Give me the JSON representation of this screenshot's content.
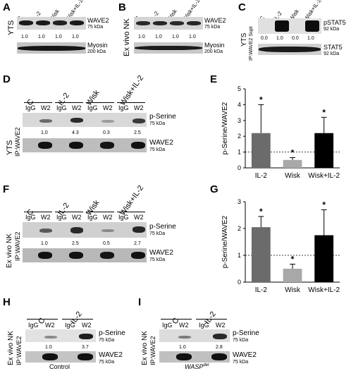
{
  "panels": {
    "A": {
      "letter": "A",
      "cell": "YTS",
      "lanes": [
        "C",
        "IL-2",
        "Wisk",
        "Wisk+IL-2"
      ],
      "top_label": "WAVE2",
      "top_kda": "75 kDa",
      "bottom_label": "Myosin",
      "bottom_kda": "200 kDa",
      "values": [
        "1.0",
        "1.0",
        "1.0",
        "1.0"
      ]
    },
    "B": {
      "letter": "B",
      "cell": "Ex vivo NK",
      "lanes": [
        "C",
        "IL-2",
        "Wisk",
        "Wisk+IL-2"
      ],
      "top_label": "WAVE2",
      "top_kda": "75 kDa",
      "bottom_label": "Myosin",
      "bottom_kda": "200 kDa",
      "values": [
        "1.0",
        "1.0",
        "1.0",
        "1.0"
      ]
    },
    "C": {
      "letter": "C",
      "cell": "YTS",
      "side": "IP:WAVE2 Supt",
      "lanes": [
        "C",
        "IL-2",
        "Wisk",
        "Wisk+IL-2"
      ],
      "top_label": "pSTAT5",
      "top_kda": "92 kDa",
      "bottom_label": "STAT5",
      "bottom_kda": "92 kDa",
      "values": [
        "0.0",
        "1.0",
        "0.0",
        "1.0"
      ]
    },
    "D": {
      "letter": "D",
      "cell": "YTS",
      "side": "IP:WAVE2",
      "groups": [
        "C",
        "IL-2",
        "Wisk",
        "Wisk+IL-2"
      ],
      "sub": [
        "IgG",
        "W2",
        "IgG",
        "W2",
        "IgG",
        "W2",
        "IgG",
        "W2"
      ],
      "top_label": "p-Serine",
      "top_kda": "75 kDa",
      "bottom_label": "WAVE2",
      "bottom_kda": "75 kDa",
      "values": [
        "1.0",
        "4.3",
        "0.3",
        "2.5"
      ]
    },
    "E": {
      "letter": "E"
    },
    "F": {
      "letter": "F",
      "cell": "Ex vivo NK",
      "side": "IP:WAVE2",
      "groups": [
        "C",
        "IL-2",
        "Wisk",
        "Wisk+IL-2"
      ],
      "sub": [
        "IgG",
        "W2",
        "IgG",
        "W2",
        "IgG",
        "W2",
        "IgG",
        "W2"
      ],
      "top_label": "p-Serine",
      "top_kda": "75 kDa",
      "bottom_label": "WAVE2",
      "bottom_kda": "75 kDa",
      "values": [
        "1.0",
        "2.5",
        "0.5",
        "2.7"
      ]
    },
    "G": {
      "letter": "G"
    },
    "H": {
      "letter": "H",
      "cell": "Ex vivo NK",
      "side": "IP:WAVE2",
      "groups": [
        "C",
        "IL-2"
      ],
      "sub": [
        "IgG",
        "W2",
        "IgG",
        "W2"
      ],
      "top_label": "p-Serine",
      "top_kda": "75 kDa",
      "bottom_label": "WAVE2",
      "bottom_kda": "75 kDa",
      "values": [
        "1.0",
        "3.7"
      ],
      "caption": "Control"
    },
    "I": {
      "letter": "I",
      "cell": "Ex vivo NK",
      "side": "IP:WAVE2",
      "groups": [
        "C",
        "IL-2"
      ],
      "sub": [
        "IgG",
        "W2",
        "IgG",
        "W2"
      ],
      "top_label": "p-Serine",
      "top_kda": "75 kDa",
      "bottom_label": "WAVE2",
      "bottom_kda": "75 kDa",
      "values": [
        "1.0",
        "2.8"
      ],
      "caption_main": "WASP",
      "caption_sup": "del"
    }
  },
  "chart_data": [
    {
      "panel": "E",
      "type": "bar",
      "categories": [
        "IL-2",
        "Wisk",
        "Wisk+IL-2"
      ],
      "values": [
        2.2,
        0.5,
        2.2
      ],
      "errors": [
        1.8,
        0.15,
        1.0
      ],
      "significance": [
        "*",
        "*",
        "*"
      ],
      "bar_colors": [
        "#6b6b6b",
        "#a8a8a8",
        "#000000"
      ],
      "ylabel": "p-Serine/WAVE2",
      "ylim": [
        0,
        5
      ],
      "yticks": [
        "0",
        "1",
        "2",
        "3",
        "4",
        "5"
      ],
      "reference_line": 1
    },
    {
      "panel": "G",
      "type": "bar",
      "categories": [
        "IL-2",
        "Wisk",
        "Wisk+IL-2"
      ],
      "values": [
        2.05,
        0.5,
        1.75
      ],
      "errors": [
        0.4,
        0.17,
        0.95
      ],
      "significance": [
        "*",
        "*",
        "*"
      ],
      "bar_colors": [
        "#6b6b6b",
        "#a8a8a8",
        "#000000"
      ],
      "ylabel": "p-Serine/WAVE2",
      "ylim": [
        0,
        3
      ],
      "yticks": [
        "0",
        "1",
        "2",
        "3"
      ],
      "reference_line": 1
    }
  ]
}
